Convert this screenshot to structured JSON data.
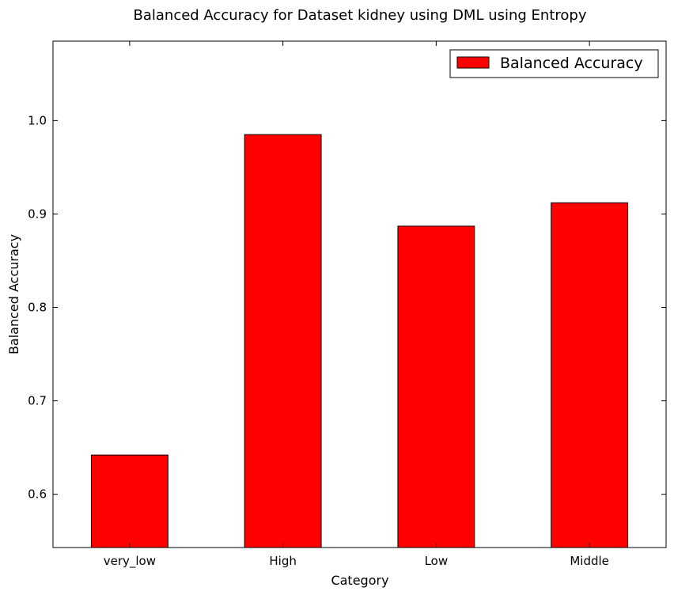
{
  "chart_data": {
    "type": "bar",
    "title": "Balanced Accuracy for Dataset kidney using DML using Entropy",
    "xlabel": "Category",
    "ylabel": "Balanced Accuracy",
    "categories": [
      "very_low",
      "High",
      "Low",
      "Middle"
    ],
    "series": [
      {
        "name": "Balanced Accuracy",
        "values": [
          0.642,
          0.985,
          0.887,
          0.912
        ]
      }
    ],
    "ylim": [
      0.543,
      1.085
    ],
    "yticks": [
      0.6,
      0.7,
      0.8,
      0.9,
      1.0
    ],
    "ytick_labels": [
      "0.6",
      "0.7",
      "0.8",
      "0.9",
      "1.0"
    ],
    "grid": false,
    "legend_position": "top-right",
    "colors": {
      "bar": "#ff0000",
      "edge": "#000000"
    }
  }
}
